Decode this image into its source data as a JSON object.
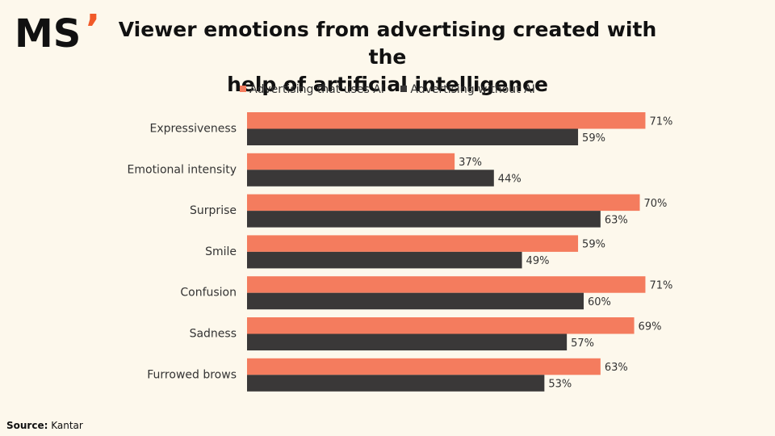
{
  "brand": {
    "logo_text": "MS",
    "accent_mark": "’"
  },
  "colors": {
    "with_ai": "#f47c5e",
    "without_ai": "#3a3838",
    "background": "#fdf8ec"
  },
  "title_line1": "Viewer emotions from advertising created with the",
  "title_line2": "help of artificial intelligence",
  "source": {
    "label": "Source:",
    "value": "Kantar"
  },
  "chart_data": {
    "type": "bar",
    "orientation": "horizontal",
    "categories": [
      "Expressiveness",
      "Emotional intensity",
      "Surprise",
      "Smile",
      "Confusion",
      "Sadness",
      "Furrowed brows"
    ],
    "series": [
      {
        "name": "Advertising that uses AI",
        "values": [
          71,
          37,
          70,
          59,
          71,
          69,
          63
        ],
        "labels": [
          "71%",
          "37%",
          "70%",
          "59%",
          "71%",
          "69%",
          "63%"
        ]
      },
      {
        "name": "Advertising without AI",
        "values": [
          59,
          44,
          63,
          49,
          60,
          57,
          53
        ],
        "labels": [
          "59%",
          "44%",
          "63%",
          "49%",
          "60%",
          "57%",
          "53%"
        ]
      }
    ],
    "xlim": [
      0,
      100
    ],
    "legend_position": "top",
    "grid": false
  }
}
